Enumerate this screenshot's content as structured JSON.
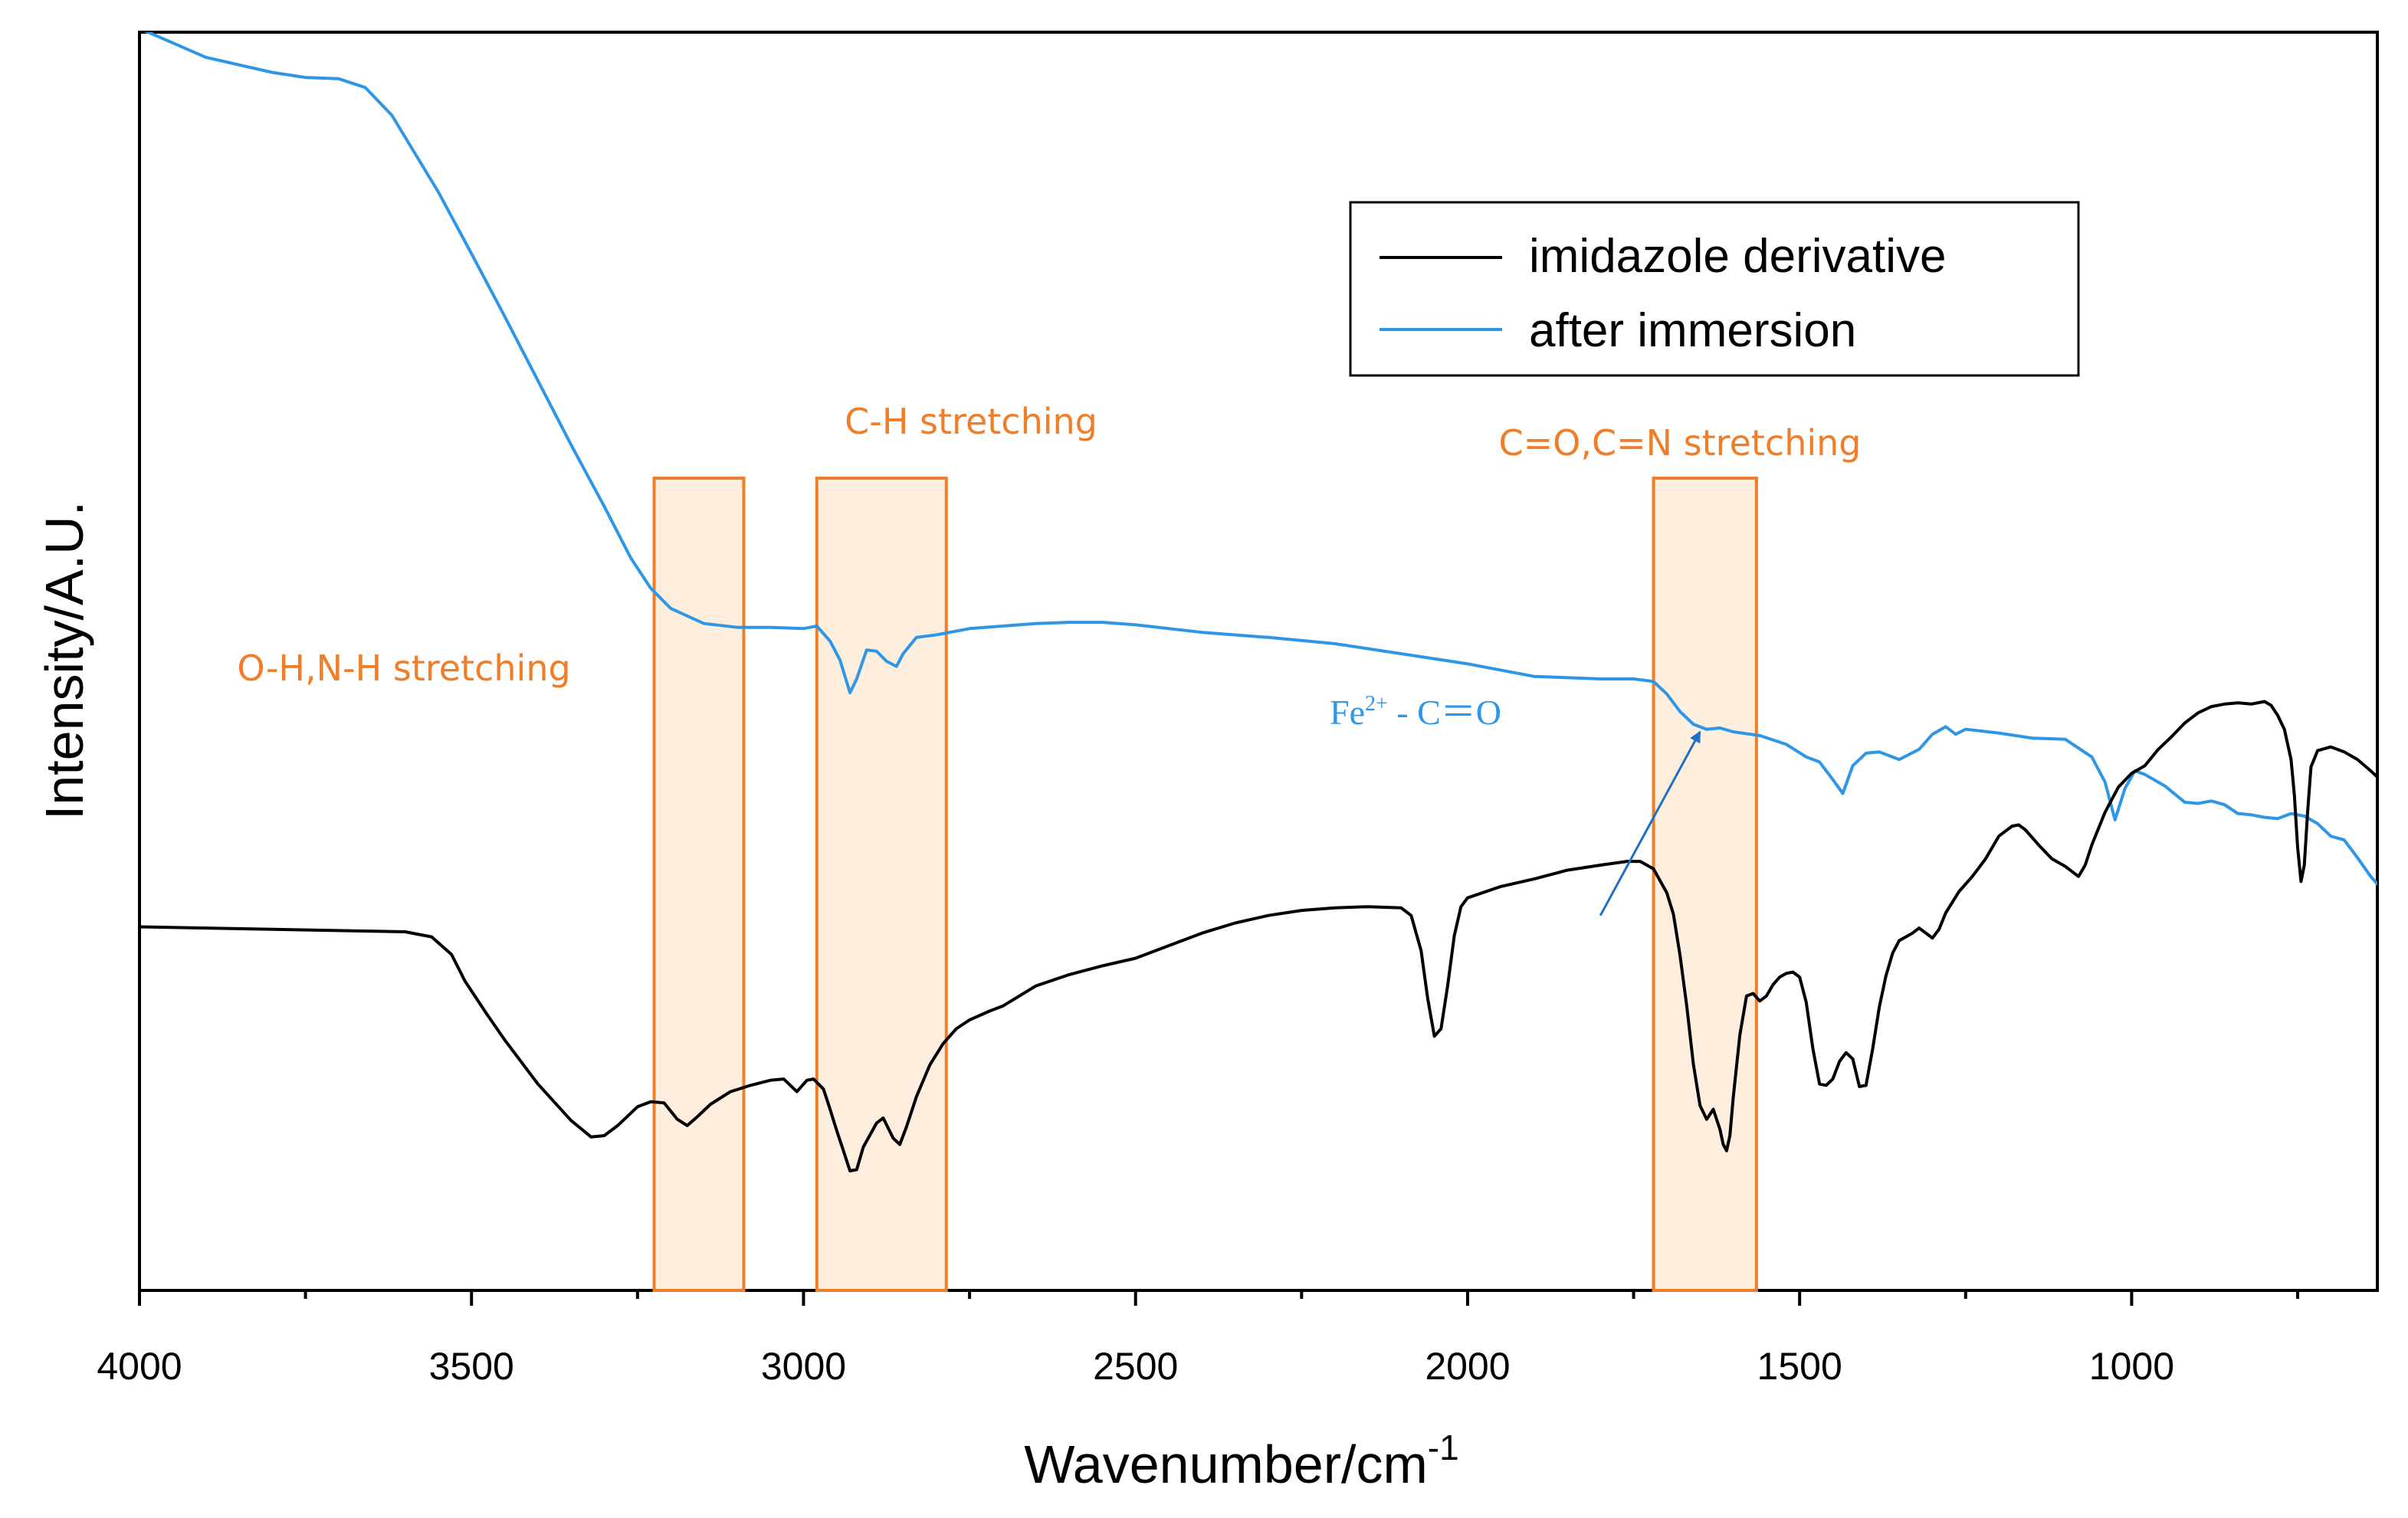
{
  "chart_data": {
    "type": "line",
    "xlabel": "Wavenumber/cm",
    "xlabel_sup": "-1",
    "ylabel": "Intensity/A.U.",
    "xlim": [
      4000,
      630
    ],
    "ylim": [
      0,
      100
    ],
    "x_reversed": true,
    "yticks_shown": false,
    "xticks": [
      {
        "value": 4000,
        "label": "4000"
      },
      {
        "value": 3500,
        "label": "3500"
      },
      {
        "value": 3000,
        "label": "3000"
      },
      {
        "value": 2500,
        "label": "2500"
      },
      {
        "value": 2000,
        "label": "2000"
      },
      {
        "value": 1500,
        "label": "1500"
      },
      {
        "value": 1000,
        "label": "1000"
      }
    ],
    "x_minor_ticks": [
      3750,
      3250,
      2750,
      2250,
      1750,
      1250,
      750
    ],
    "legend": {
      "position": "top-right",
      "entries": [
        {
          "label": "imidazole derivative",
          "color": "#000000"
        },
        {
          "label": "after immersion",
          "color": "#2e96e6"
        }
      ]
    },
    "series": [
      {
        "name": "after immersion",
        "color": "#2e96e6",
        "points": [
          [
            4000,
            100.3
          ],
          [
            3900,
            98.0
          ],
          [
            3800,
            96.8
          ],
          [
            3750,
            96.4
          ],
          [
            3700,
            96.3
          ],
          [
            3660,
            95.6
          ],
          [
            3620,
            93.4
          ],
          [
            3550,
            87.3
          ],
          [
            3500,
            82.4
          ],
          [
            3450,
            77.4
          ],
          [
            3400,
            72.3
          ],
          [
            3350,
            67.2
          ],
          [
            3300,
            62.3
          ],
          [
            3260,
            58.2
          ],
          [
            3230,
            55.8
          ],
          [
            3200,
            54.2
          ],
          [
            3150,
            53.0
          ],
          [
            3100,
            52.7
          ],
          [
            3050,
            52.7
          ],
          [
            3000,
            52.6
          ],
          [
            2980,
            52.8
          ],
          [
            2960,
            51.6
          ],
          [
            2945,
            50.1
          ],
          [
            2930,
            47.5
          ],
          [
            2920,
            48.6
          ],
          [
            2905,
            50.9
          ],
          [
            2890,
            50.8
          ],
          [
            2875,
            50.0
          ],
          [
            2860,
            49.6
          ],
          [
            2850,
            50.6
          ],
          [
            2830,
            51.9
          ],
          [
            2800,
            52.1
          ],
          [
            2750,
            52.6
          ],
          [
            2700,
            52.8
          ],
          [
            2650,
            53.0
          ],
          [
            2600,
            53.1
          ],
          [
            2550,
            53.1
          ],
          [
            2500,
            52.9
          ],
          [
            2450,
            52.6
          ],
          [
            2400,
            52.3
          ],
          [
            2300,
            51.9
          ],
          [
            2200,
            51.4
          ],
          [
            2100,
            50.6
          ],
          [
            2000,
            49.8
          ],
          [
            1900,
            48.8
          ],
          [
            1800,
            48.6
          ],
          [
            1750,
            48.6
          ],
          [
            1720,
            48.4
          ],
          [
            1700,
            47.4
          ],
          [
            1680,
            46.0
          ],
          [
            1660,
            45.0
          ],
          [
            1640,
            44.6
          ],
          [
            1620,
            44.7
          ],
          [
            1600,
            44.4
          ],
          [
            1560,
            44.1
          ],
          [
            1520,
            43.4
          ],
          [
            1490,
            42.4
          ],
          [
            1470,
            42.0
          ],
          [
            1450,
            40.6
          ],
          [
            1435,
            39.5
          ],
          [
            1420,
            41.7
          ],
          [
            1400,
            42.7
          ],
          [
            1380,
            42.8
          ],
          [
            1350,
            42.2
          ],
          [
            1320,
            43.0
          ],
          [
            1300,
            44.2
          ],
          [
            1280,
            44.8
          ],
          [
            1265,
            44.2
          ],
          [
            1250,
            44.6
          ],
          [
            1200,
            44.3
          ],
          [
            1150,
            43.9
          ],
          [
            1100,
            43.8
          ],
          [
            1060,
            42.4
          ],
          [
            1040,
            40.4
          ],
          [
            1025,
            37.4
          ],
          [
            1010,
            39.9
          ],
          [
            995,
            41.3
          ],
          [
            980,
            41.0
          ],
          [
            950,
            40.1
          ],
          [
            920,
            38.8
          ],
          [
            900,
            38.7
          ],
          [
            880,
            38.9
          ],
          [
            860,
            38.6
          ],
          [
            840,
            37.9
          ],
          [
            820,
            37.8
          ],
          [
            800,
            37.6
          ],
          [
            780,
            37.5
          ],
          [
            760,
            37.9
          ],
          [
            740,
            37.7
          ],
          [
            720,
            37.1
          ],
          [
            700,
            36.1
          ],
          [
            680,
            35.8
          ],
          [
            660,
            34.4
          ],
          [
            640,
            32.9
          ],
          [
            630,
            32.3
          ]
        ]
      },
      {
        "name": "imidazole derivative",
        "color": "#000000",
        "points": [
          [
            4000,
            28.9
          ],
          [
            3900,
            28.8
          ],
          [
            3800,
            28.7
          ],
          [
            3700,
            28.6
          ],
          [
            3600,
            28.5
          ],
          [
            3560,
            28.1
          ],
          [
            3530,
            26.7
          ],
          [
            3510,
            24.6
          ],
          [
            3480,
            22.2
          ],
          [
            3450,
            19.9
          ],
          [
            3400,
            16.4
          ],
          [
            3350,
            13.5
          ],
          [
            3320,
            12.2
          ],
          [
            3300,
            12.3
          ],
          [
            3280,
            13.1
          ],
          [
            3250,
            14.6
          ],
          [
            3230,
            15.0
          ],
          [
            3210,
            14.9
          ],
          [
            3190,
            13.6
          ],
          [
            3175,
            13.1
          ],
          [
            3160,
            13.8
          ],
          [
            3140,
            14.8
          ],
          [
            3110,
            15.8
          ],
          [
            3080,
            16.3
          ],
          [
            3050,
            16.7
          ],
          [
            3030,
            16.8
          ],
          [
            3010,
            15.8
          ],
          [
            2995,
            16.7
          ],
          [
            2985,
            16.8
          ],
          [
            2970,
            16.0
          ],
          [
            2960,
            14.4
          ],
          [
            2950,
            12.7
          ],
          [
            2940,
            11.1
          ],
          [
            2930,
            9.5
          ],
          [
            2920,
            9.6
          ],
          [
            2910,
            11.4
          ],
          [
            2890,
            13.3
          ],
          [
            2880,
            13.7
          ],
          [
            2865,
            12.1
          ],
          [
            2855,
            11.6
          ],
          [
            2845,
            13.0
          ],
          [
            2830,
            15.4
          ],
          [
            2810,
            17.9
          ],
          [
            2790,
            19.6
          ],
          [
            2770,
            20.8
          ],
          [
            2750,
            21.5
          ],
          [
            2720,
            22.2
          ],
          [
            2700,
            22.6
          ],
          [
            2650,
            24.2
          ],
          [
            2600,
            25.1
          ],
          [
            2550,
            25.8
          ],
          [
            2500,
            26.4
          ],
          [
            2450,
            27.4
          ],
          [
            2400,
            28.4
          ],
          [
            2350,
            29.2
          ],
          [
            2300,
            29.8
          ],
          [
            2250,
            30.2
          ],
          [
            2200,
            30.4
          ],
          [
            2150,
            30.5
          ],
          [
            2100,
            30.4
          ],
          [
            2085,
            29.8
          ],
          [
            2070,
            27.0
          ],
          [
            2060,
            23.2
          ],
          [
            2050,
            20.2
          ],
          [
            2040,
            20.8
          ],
          [
            2030,
            24.2
          ],
          [
            2020,
            28.2
          ],
          [
            2010,
            30.5
          ],
          [
            2000,
            31.2
          ],
          [
            1950,
            32.1
          ],
          [
            1900,
            32.7
          ],
          [
            1850,
            33.4
          ],
          [
            1800,
            33.8
          ],
          [
            1760,
            34.1
          ],
          [
            1740,
            34.1
          ],
          [
            1720,
            33.5
          ],
          [
            1700,
            31.6
          ],
          [
            1690,
            29.9
          ],
          [
            1680,
            26.6
          ],
          [
            1670,
            22.6
          ],
          [
            1660,
            18.0
          ],
          [
            1650,
            14.7
          ],
          [
            1640,
            13.6
          ],
          [
            1630,
            14.4
          ],
          [
            1620,
            12.8
          ],
          [
            1615,
            11.6
          ],
          [
            1610,
            11.1
          ],
          [
            1605,
            12.3
          ],
          [
            1600,
            15.3
          ],
          [
            1590,
            20.3
          ],
          [
            1580,
            23.4
          ],
          [
            1570,
            23.6
          ],
          [
            1560,
            23.0
          ],
          [
            1550,
            23.4
          ],
          [
            1540,
            24.3
          ],
          [
            1530,
            24.9
          ],
          [
            1520,
            25.2
          ],
          [
            1510,
            25.3
          ],
          [
            1500,
            24.9
          ],
          [
            1490,
            22.9
          ],
          [
            1480,
            19.2
          ],
          [
            1470,
            16.4
          ],
          [
            1460,
            16.3
          ],
          [
            1450,
            16.8
          ],
          [
            1440,
            18.2
          ],
          [
            1430,
            18.9
          ],
          [
            1420,
            18.4
          ],
          [
            1410,
            16.2
          ],
          [
            1400,
            16.3
          ],
          [
            1390,
            19.2
          ],
          [
            1380,
            22.5
          ],
          [
            1370,
            25.0
          ],
          [
            1360,
            26.8
          ],
          [
            1350,
            27.8
          ],
          [
            1330,
            28.4
          ],
          [
            1320,
            28.8
          ],
          [
            1300,
            28.0
          ],
          [
            1290,
            28.7
          ],
          [
            1280,
            30.0
          ],
          [
            1260,
            31.7
          ],
          [
            1240,
            32.9
          ],
          [
            1220,
            34.3
          ],
          [
            1200,
            36.1
          ],
          [
            1180,
            36.9
          ],
          [
            1170,
            37.0
          ],
          [
            1160,
            36.6
          ],
          [
            1140,
            35.4
          ],
          [
            1120,
            34.3
          ],
          [
            1100,
            33.7
          ],
          [
            1080,
            32.9
          ],
          [
            1070,
            33.8
          ],
          [
            1060,
            35.4
          ],
          [
            1040,
            38.0
          ],
          [
            1020,
            40.0
          ],
          [
            1000,
            41.1
          ],
          [
            980,
            41.7
          ],
          [
            960,
            43.0
          ],
          [
            940,
            44.0
          ],
          [
            920,
            45.1
          ],
          [
            900,
            45.9
          ],
          [
            880,
            46.4
          ],
          [
            860,
            46.6
          ],
          [
            840,
            46.7
          ],
          [
            820,
            46.6
          ],
          [
            800,
            46.8
          ],
          [
            790,
            46.5
          ],
          [
            780,
            45.7
          ],
          [
            770,
            44.6
          ],
          [
            760,
            42.2
          ],
          [
            755,
            39.4
          ],
          [
            750,
            35.2
          ],
          [
            745,
            32.5
          ],
          [
            740,
            33.8
          ],
          [
            735,
            38.0
          ],
          [
            730,
            41.6
          ],
          [
            720,
            42.9
          ],
          [
            700,
            43.2
          ],
          [
            680,
            42.8
          ],
          [
            660,
            42.2
          ],
          [
            640,
            41.3
          ],
          [
            630,
            40.8
          ]
        ]
      }
    ],
    "bands": [
      {
        "x0": 3225,
        "x1": 3090,
        "color": "#f07d28",
        "fill": "#fdeedd"
      },
      {
        "x0": 2980,
        "x1": 2785,
        "color": "#f07d28",
        "fill": "#fdeedd"
      },
      {
        "x0": 1720,
        "x1": 1565,
        "color": "#f07d28",
        "fill": "#fdeedd"
      }
    ],
    "annotations": [
      {
        "text": "O-H,N-H stretching",
        "color": "#f07d28"
      },
      {
        "text": "C-H stretching",
        "color": "#f07d28"
      },
      {
        "text": "C=O,C=N stretching",
        "color": "#f07d28"
      }
    ],
    "fe_annotation": {
      "base": "Fe",
      "sup": "2+",
      "rest": " - C＝O",
      "color": "#2e96e6",
      "arrow_from": [
        1800,
        29.8
      ],
      "arrow_to": [
        1650,
        44.4
      ]
    }
  }
}
